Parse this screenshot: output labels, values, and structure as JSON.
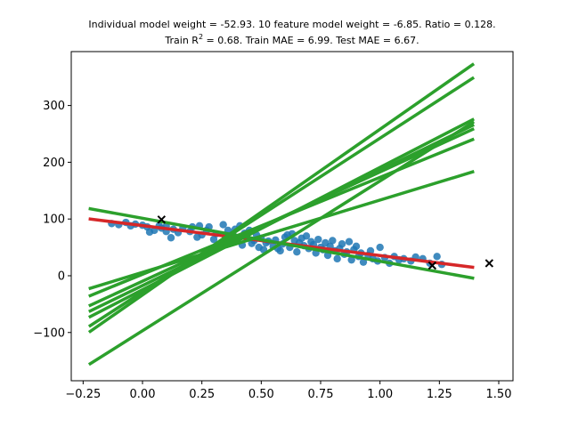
{
  "chart_data": {
    "type": "scatter",
    "title_line1": "Individual model weight = -52.93. 10 feature model weight = -6.85. Ratio = 0.128.",
    "title_line2_prefix": "Train R",
    "title_line2_sup": "2",
    "title_line2_suffix": " = 0.68. Train MAE = 6.99. Test MAE = 6.67.",
    "xlabel": "",
    "ylabel": "",
    "xlim": [
      -0.3,
      1.56
    ],
    "ylim": [
      -185,
      395
    ],
    "grid": false,
    "xticks": [
      -0.25,
      0.0,
      0.25,
      0.5,
      0.75,
      1.0,
      1.25,
      1.5
    ],
    "xtick_labels": [
      "−0.25",
      "0.00",
      "0.25",
      "0.50",
      "0.75",
      "1.00",
      "1.25",
      "1.50"
    ],
    "yticks": [
      -100,
      0,
      100,
      200,
      300
    ],
    "ytick_labels": [
      "−100",
      "0",
      "100",
      "200",
      "300"
    ],
    "colors": {
      "points": "#1f77b4",
      "fit": "#d62728",
      "models": "#2ca02c",
      "test": "#000000"
    },
    "scatter_points": [
      [
        -0.13,
        92
      ],
      [
        -0.1,
        90
      ],
      [
        -0.07,
        94
      ],
      [
        -0.05,
        88
      ],
      [
        -0.03,
        91
      ],
      [
        0.0,
        89
      ],
      [
        0.02,
        86
      ],
      [
        0.03,
        77
      ],
      [
        0.05,
        80
      ],
      [
        0.07,
        88
      ],
      [
        0.08,
        84
      ],
      [
        0.1,
        87
      ],
      [
        0.1,
        78
      ],
      [
        0.12,
        67
      ],
      [
        0.13,
        82
      ],
      [
        0.15,
        76
      ],
      [
        0.17,
        84
      ],
      [
        0.2,
        78
      ],
      [
        0.21,
        86
      ],
      [
        0.23,
        68
      ],
      [
        0.24,
        88
      ],
      [
        0.25,
        72
      ],
      [
        0.27,
        80
      ],
      [
        0.28,
        86
      ],
      [
        0.3,
        64
      ],
      [
        0.31,
        74
      ],
      [
        0.33,
        58
      ],
      [
        0.34,
        90
      ],
      [
        0.35,
        68
      ],
      [
        0.36,
        80
      ],
      [
        0.37,
        60
      ],
      [
        0.38,
        73
      ],
      [
        0.39,
        82
      ],
      [
        0.4,
        65
      ],
      [
        0.41,
        88
      ],
      [
        0.42,
        54
      ],
      [
        0.43,
        75
      ],
      [
        0.44,
        69
      ],
      [
        0.45,
        80
      ],
      [
        0.46,
        57
      ],
      [
        0.47,
        62
      ],
      [
        0.48,
        72
      ],
      [
        0.49,
        50
      ],
      [
        0.5,
        66
      ],
      [
        0.51,
        46
      ],
      [
        0.52,
        58
      ],
      [
        0.53,
        61
      ],
      [
        0.55,
        52
      ],
      [
        0.56,
        63
      ],
      [
        0.57,
        48
      ],
      [
        0.58,
        44
      ],
      [
        0.59,
        56
      ],
      [
        0.6,
        68
      ],
      [
        0.61,
        72
      ],
      [
        0.62,
        50
      ],
      [
        0.63,
        74
      ],
      [
        0.64,
        62
      ],
      [
        0.65,
        42
      ],
      [
        0.66,
        58
      ],
      [
        0.67,
        66
      ],
      [
        0.68,
        53
      ],
      [
        0.69,
        70
      ],
      [
        0.7,
        48
      ],
      [
        0.71,
        60
      ],
      [
        0.72,
        55
      ],
      [
        0.73,
        40
      ],
      [
        0.74,
        64
      ],
      [
        0.75,
        50
      ],
      [
        0.76,
        46
      ],
      [
        0.77,
        58
      ],
      [
        0.78,
        36
      ],
      [
        0.79,
        52
      ],
      [
        0.8,
        62
      ],
      [
        0.81,
        44
      ],
      [
        0.82,
        30
      ],
      [
        0.83,
        48
      ],
      [
        0.84,
        56
      ],
      [
        0.85,
        38
      ],
      [
        0.86,
        42
      ],
      [
        0.87,
        60
      ],
      [
        0.88,
        28
      ],
      [
        0.89,
        46
      ],
      [
        0.9,
        52
      ],
      [
        0.91,
        34
      ],
      [
        0.92,
        40
      ],
      [
        0.93,
        24
      ],
      [
        0.95,
        36
      ],
      [
        0.96,
        44
      ],
      [
        0.97,
        30
      ],
      [
        0.99,
        26
      ],
      [
        1.0,
        50
      ],
      [
        1.02,
        32
      ],
      [
        1.04,
        22
      ],
      [
        1.06,
        34
      ],
      [
        1.08,
        28
      ],
      [
        1.1,
        30
      ],
      [
        1.13,
        26
      ],
      [
        1.15,
        33
      ],
      [
        1.18,
        30
      ],
      [
        1.21,
        22
      ],
      [
        1.24,
        34
      ],
      [
        1.26,
        20
      ]
    ],
    "test_points": [
      [
        0.08,
        99
      ],
      [
        1.22,
        18
      ],
      [
        1.46,
        22
      ]
    ],
    "fit_line": {
      "x": [
        -0.22,
        1.39
      ],
      "y": [
        100,
        15
      ]
    },
    "model_lines": [
      {
        "x": [
          -0.22,
          1.39
        ],
        "y": [
          118,
          -4
        ]
      },
      {
        "x": [
          -0.22,
          1.39
        ],
        "y": [
          -22,
          183
        ]
      },
      {
        "x": [
          -0.22,
          1.39
        ],
        "y": [
          -35,
          240
        ]
      },
      {
        "x": [
          -0.22,
          1.39
        ],
        "y": [
          -52,
          258
        ]
      },
      {
        "x": [
          -0.22,
          1.39
        ],
        "y": [
          -62,
          265
        ]
      },
      {
        "x": [
          -0.22,
          1.39
        ],
        "y": [
          -72,
          275
        ]
      },
      {
        "x": [
          -0.22,
          1.39
        ],
        "y": [
          -88,
          348
        ]
      },
      {
        "x": [
          -0.22,
          1.39
        ],
        "y": [
          -98,
          372
        ]
      },
      {
        "x": [
          -0.22,
          1.39
        ],
        "y": [
          -155,
          270
        ]
      }
    ]
  }
}
